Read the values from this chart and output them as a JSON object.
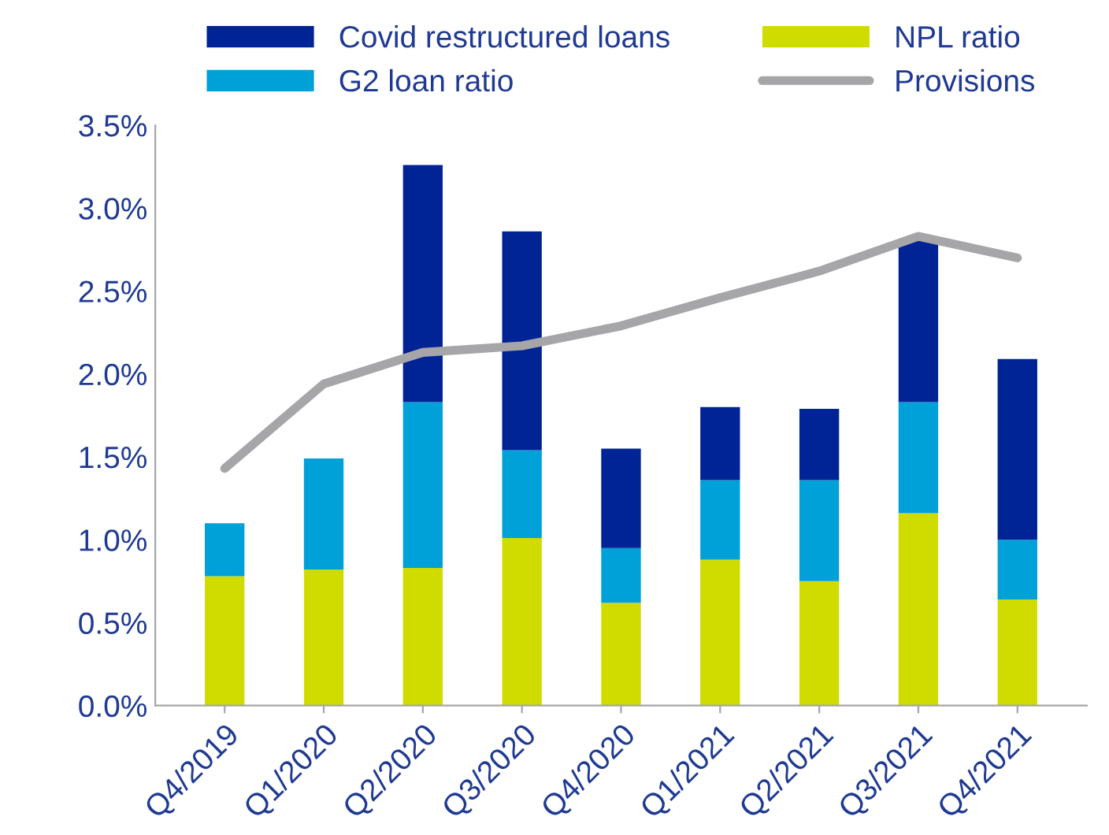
{
  "chart_data": {
    "type": "bar",
    "stacked": true,
    "categories": [
      "Q4/2019",
      "Q1/2020",
      "Q2/2020",
      "Q3/2020",
      "Q4/2020",
      "Q1/2021",
      "Q2/2021",
      "Q3/2021",
      "Q4/2021"
    ],
    "series": [
      {
        "name": "NPL ratio",
        "color": "#d0dc00",
        "values": [
          0.78,
          0.82,
          0.83,
          1.01,
          0.62,
          0.88,
          0.75,
          1.16,
          0.64
        ]
      },
      {
        "name": "G2 loan ratio",
        "color": "#00a0d8",
        "values": [
          0.32,
          0.67,
          1.0,
          0.53,
          0.33,
          0.48,
          0.61,
          0.67,
          0.36
        ]
      },
      {
        "name": "Covid restructured loans",
        "color": "#002395",
        "values": [
          null,
          null,
          1.43,
          1.32,
          0.6,
          0.44,
          0.43,
          0.98,
          1.09
        ]
      },
      {
        "name": "Provisions",
        "type": "line",
        "color": "#a6a6a8",
        "values": [
          1.43,
          1.94,
          2.13,
          2.17,
          2.29,
          2.46,
          2.62,
          2.83,
          2.7
        ]
      }
    ],
    "ylim": [
      0,
      3.5
    ],
    "yticks": [
      {
        "value": 0,
        "label": "0.0%"
      },
      {
        "value": 0.5,
        "label": "0.5%"
      },
      {
        "value": 1,
        "label": "1.0%"
      },
      {
        "value": 1.5,
        "label": "1.5%"
      },
      {
        "value": 2,
        "label": "2.0%"
      },
      {
        "value": 2.5,
        "label": "2.5%"
      },
      {
        "value": 3,
        "label": "3.0%"
      },
      {
        "value": 3.5,
        "label": "3.5%"
      }
    ],
    "legend": "top"
  }
}
